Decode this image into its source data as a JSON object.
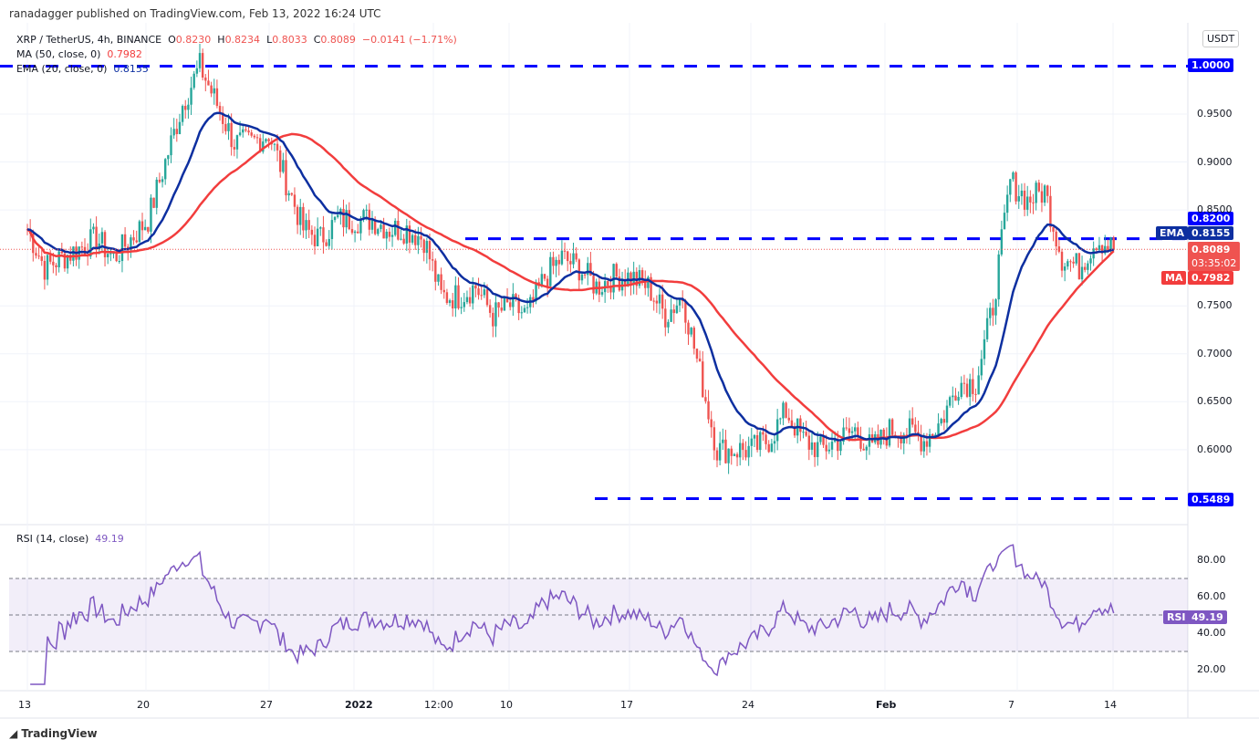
{
  "header": {
    "published": "ranadagger published on TradingView.com, Feb 13, 2022 16:24 UTC"
  },
  "legend": {
    "symbol": "XRP / TetherUS, 4h, BINANCE",
    "o_label": "O",
    "o": "0.8230",
    "h_label": "H",
    "h": "0.8234",
    "l_label": "L",
    "l": "0.8033",
    "c_label": "C",
    "c": "0.8089",
    "change": "−0.0141 (−1.71%)",
    "ma": "MA (50, close, 0)",
    "ma_value": "0.7982",
    "ema": "EMA (20, close, 0)",
    "ema_value": "0.8155"
  },
  "currency_button": "USDT",
  "footer": {
    "logo": "TradingView"
  },
  "colors": {
    "up": "#26a69a",
    "down": "#ef5350",
    "ema": "#0d2fa0",
    "ma": "#f23d3d",
    "level": "#0000ff",
    "rsi": "#7e57c2"
  },
  "chart_data": [
    {
      "type": "candlestick",
      "timeframe": "4h",
      "x_ticks": [
        "13",
        "20",
        "27",
        "2022",
        "12:00",
        "10",
        "17",
        "24",
        "Feb",
        "7",
        "14"
      ],
      "y_ticks": [
        "0.6000",
        "0.6500",
        "0.7000",
        "0.7500",
        "0.8500",
        "0.9000",
        "0.9500"
      ],
      "ylim": [
        0.535,
        1.02
      ],
      "daily_closes": [
        0.83,
        0.79,
        0.8,
        0.81,
        0.82,
        0.8,
        0.82,
        0.84,
        0.9,
        0.96,
        1.0,
        0.96,
        0.92,
        0.92,
        0.93,
        0.88,
        0.83,
        0.82,
        0.84,
        0.84,
        0.84,
        0.83,
        0.83,
        0.82,
        0.76,
        0.76,
        0.77,
        0.74,
        0.75,
        0.74,
        0.78,
        0.8,
        0.79,
        0.77,
        0.78,
        0.78,
        0.77,
        0.74,
        0.76,
        0.68,
        0.6,
        0.6,
        0.6,
        0.61,
        0.64,
        0.61,
        0.6,
        0.61,
        0.62,
        0.6,
        0.62,
        0.62,
        0.61,
        0.63,
        0.67,
        0.67,
        0.75,
        0.88,
        0.86,
        0.87,
        0.8,
        0.79,
        0.82,
        0.81
      ],
      "levels": [
        {
          "value": "1.0000"
        },
        {
          "value": "0.8200"
        },
        {
          "value": "0.5489"
        }
      ],
      "last_price": "0.8089",
      "countdown": "03:35:02",
      "ema_label": "EMA",
      "ema_value": "0.8155",
      "ma_label": "MA",
      "ma_value": "0.7982"
    },
    {
      "type": "line",
      "title": "RSI (14, close)",
      "value": "49.19",
      "value_label": "RSI",
      "y_ticks": [
        "20.00",
        "40.00",
        "60.00",
        "80.00"
      ],
      "band": [
        30,
        70
      ],
      "ylim": [
        10,
        95
      ]
    }
  ]
}
